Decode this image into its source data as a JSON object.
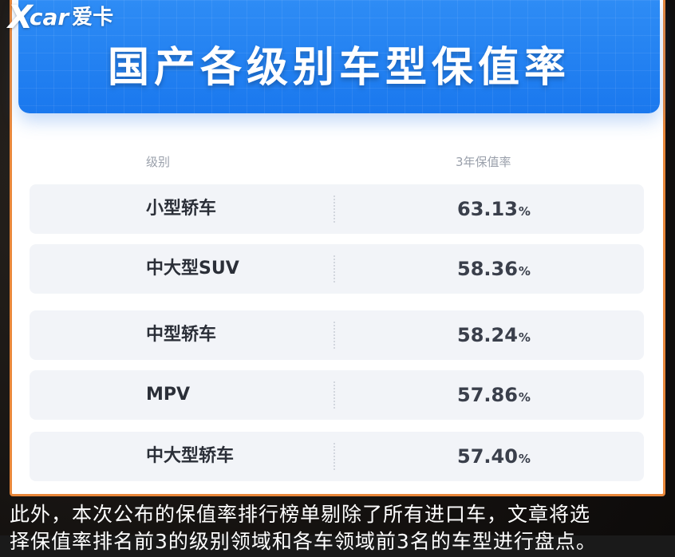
{
  "logo": {
    "mark": "X",
    "word": "car",
    "cn": "爱卡"
  },
  "banner": {
    "title": "国产各级别车型保值率"
  },
  "table": {
    "header_level": "级别",
    "header_rate": "3年保值率",
    "rows": [
      {
        "name": "小型轿车",
        "value": "63.13",
        "unit": "%"
      },
      {
        "name": "中大型SUV",
        "value": "58.36",
        "unit": "%"
      },
      {
        "name": "中型轿车",
        "value": "58.24",
        "unit": "%"
      },
      {
        "name": "MPV",
        "value": "57.86",
        "unit": "%"
      },
      {
        "name": "中大型轿车",
        "value": "57.40",
        "unit": "%"
      }
    ]
  },
  "caption": {
    "line1": "此外，本次公布的保值率排行榜单剔除了所有进口车，文章将选",
    "line2": "择保值率排名前3的级别领域和各车领域前3名的车型进行盘点。"
  },
  "colors": {
    "banner_blue": "#1a78ee",
    "frame_orange": "#e8873a",
    "row_bg": "#f2f4f8"
  }
}
